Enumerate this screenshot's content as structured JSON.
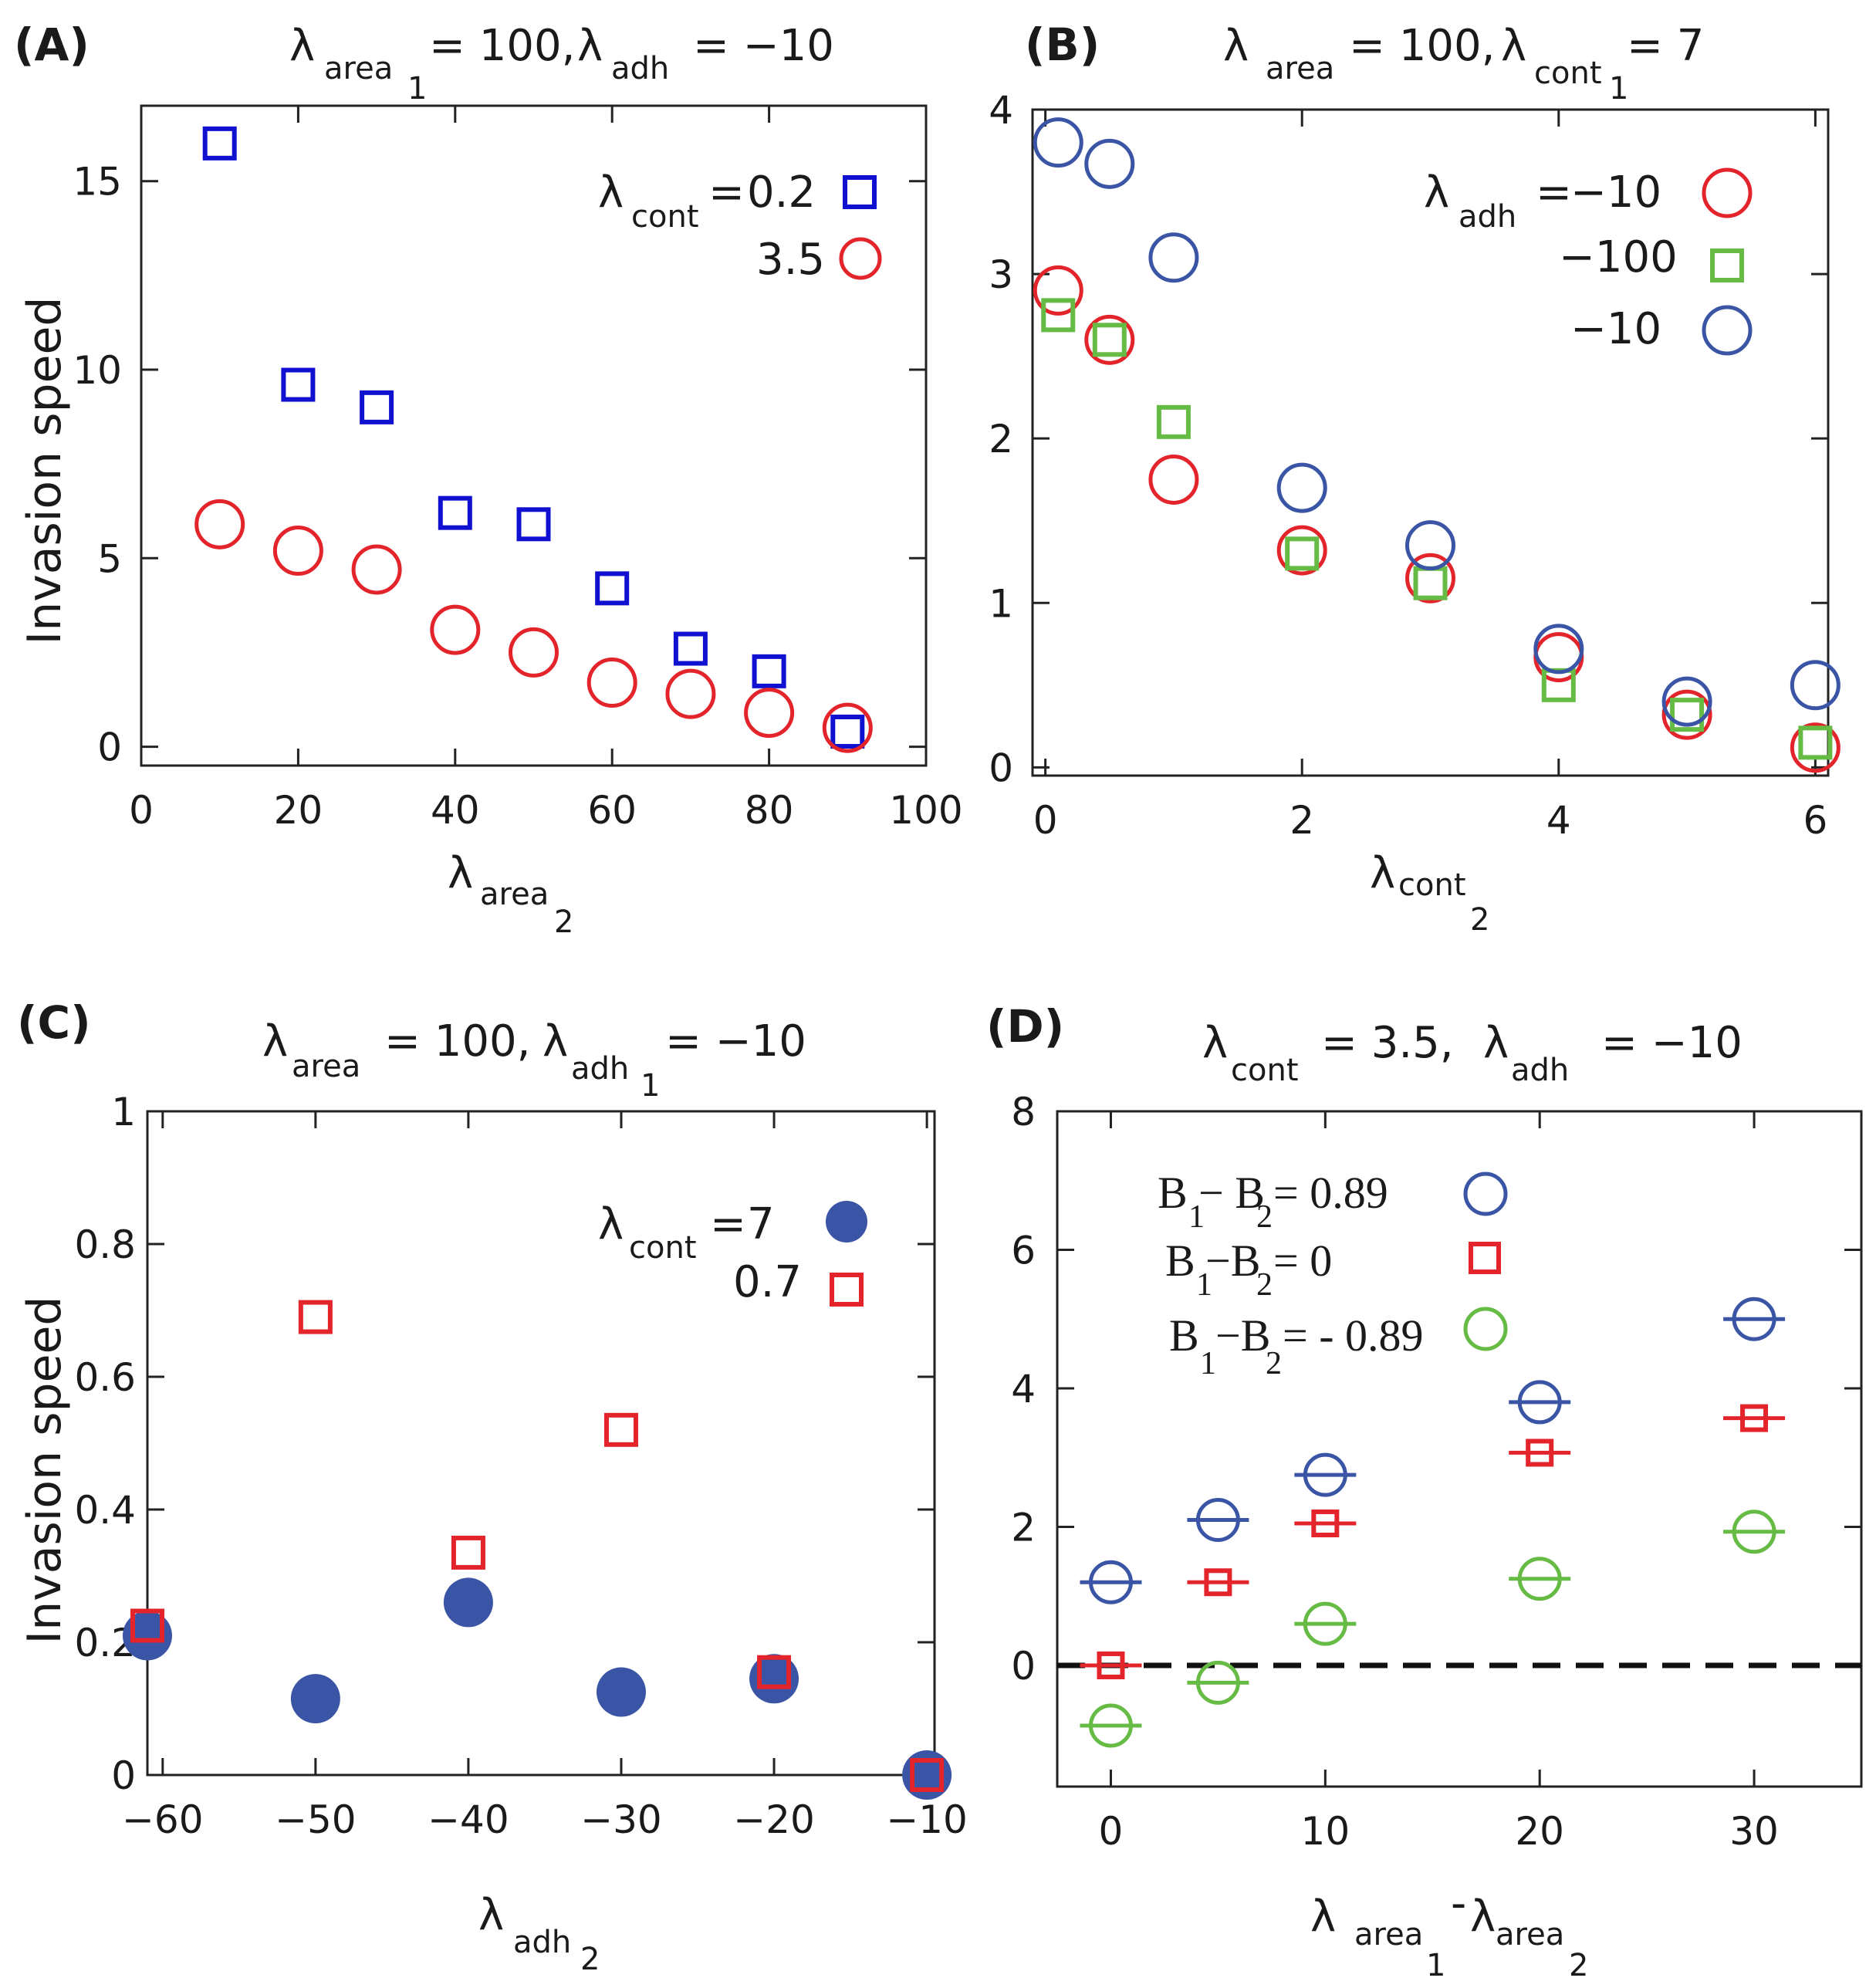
{
  "colors": {
    "blue": "#1010d0",
    "navy": "#3a55a5",
    "red": "#e3242b",
    "green": "#66bb44",
    "black": "#111111"
  },
  "chart_data": [
    {
      "panel": "(A)",
      "type": "scatter",
      "title": {
        "l1": "λ",
        "s1": "area",
        "s1b": "1",
        "m": "= 100,",
        "l2": "λ",
        "s2": "adh",
        "v": "= −10"
      },
      "xlabel": {
        "sym": "λ",
        "sub": "area",
        "subsub": "2"
      },
      "ylabel": "Invasion speed",
      "xlim": [
        0,
        100
      ],
      "ylim": [
        -0.5,
        17
      ],
      "xticks": [
        0,
        20,
        40,
        60,
        80,
        100
      ],
      "xtick_labels": [
        "0",
        "20",
        "40",
        "60",
        "80",
        "100"
      ],
      "yticks": [
        0,
        5,
        10,
        15
      ],
      "ytick_labels": [
        "0",
        "5",
        "10",
        "15"
      ],
      "legend": {
        "prefix_sym": "λ",
        "prefix_sub": "cont",
        "eq": "="
      },
      "series": [
        {
          "name": "0.2",
          "label": "0.2",
          "marker": "square",
          "color": "#1010d0",
          "x": [
            10,
            20,
            30,
            40,
            50,
            60,
            70,
            80,
            90
          ],
          "y": [
            16.0,
            9.6,
            9.0,
            6.2,
            5.9,
            4.2,
            2.6,
            2.0,
            0.4
          ]
        },
        {
          "name": "3.5",
          "label": "3.5",
          "marker": "circle",
          "color": "#e3242b",
          "x": [
            10,
            20,
            30,
            40,
            50,
            60,
            70,
            80,
            90
          ],
          "y": [
            5.9,
            5.2,
            4.7,
            3.1,
            2.5,
            1.7,
            1.4,
            0.9,
            0.5
          ]
        }
      ]
    },
    {
      "panel": "(B)",
      "type": "scatter",
      "title": {
        "l1": "λ",
        "s1": "area",
        "m": "= 100,",
        "l2": "λ",
        "s2": "cont",
        "s2b": "1",
        "v": "= 7"
      },
      "xlabel": {
        "sym": "λ",
        "sub": "cont",
        "subsub": "2"
      },
      "ylabel": "",
      "xlim": [
        -0.1,
        6.1
      ],
      "ylim": [
        -0.05,
        4.0
      ],
      "xticks": [
        0,
        2,
        4,
        6
      ],
      "xtick_labels": [
        "0",
        "2",
        "4",
        "6"
      ],
      "yticks": [
        0,
        1,
        2,
        3,
        4
      ],
      "ytick_labels": [
        "0",
        "1",
        "2",
        "3",
        "4"
      ],
      "legend": {
        "prefix_sym": "λ",
        "prefix_sub": "adh",
        "eq": "="
      },
      "series": [
        {
          "name": "−10",
          "label": "−10",
          "marker": "circle",
          "color": "#e3242b",
          "x": [
            0.1,
            0.5,
            1,
            2,
            3,
            4,
            5,
            6
          ],
          "y": [
            2.9,
            2.6,
            1.75,
            1.32,
            1.15,
            0.67,
            0.32,
            0.12
          ]
        },
        {
          "name": "−100",
          "label": "−100",
          "marker": "square",
          "color": "#66bb44",
          "x": [
            0.1,
            0.5,
            1,
            2,
            3,
            4,
            5,
            6
          ],
          "y": [
            2.75,
            2.6,
            2.1,
            1.3,
            1.12,
            0.5,
            0.32,
            0.15
          ]
        },
        {
          "name": "−10",
          "label": "−10",
          "marker": "circle",
          "color": "#3a55a5",
          "x": [
            0.1,
            0.5,
            1,
            2,
            3,
            4,
            5,
            6
          ],
          "y": [
            3.8,
            3.67,
            3.1,
            1.7,
            1.35,
            0.72,
            0.4,
            0.5
          ]
        }
      ]
    },
    {
      "panel": "(C)",
      "type": "scatter",
      "title": {
        "l1": "λ",
        "s1": "area",
        "m": "= 100,",
        "l2": "λ",
        "s2": "adh",
        "s2b": "1",
        "v": "= −10"
      },
      "xlabel": {
        "sym": "λ",
        "sub": "adh",
        "subsub": "2"
      },
      "ylabel": "Invasion speed",
      "xlim": [
        -61,
        -9.5
      ],
      "ylim": [
        0,
        1
      ],
      "xticks": [
        -60,
        -50,
        -40,
        -30,
        -20,
        -10
      ],
      "xtick_labels": [
        "−60",
        "−50",
        "−40",
        "−30",
        "−20",
        "−10"
      ],
      "yticks": [
        0,
        0.2,
        0.4,
        0.6,
        0.8,
        1
      ],
      "ytick_labels": [
        "0",
        "0.2",
        "0.4",
        "0.6",
        "0.8",
        "1"
      ],
      "legend": {
        "prefix_sym": "λ",
        "prefix_sub": "cont",
        "eq": "="
      },
      "series": [
        {
          "name": "7",
          "label": "7",
          "marker": "filled-circle",
          "color": "#3a55a5",
          "x": [
            -61,
            -50,
            -40,
            -30,
            -20,
            -10
          ],
          "y": [
            0.21,
            0.115,
            0.26,
            0.125,
            0.145,
            0.0
          ]
        },
        {
          "name": "0.7",
          "label": "0.7",
          "marker": "square",
          "color": "#e3242b",
          "x": [
            -61,
            -50,
            -40,
            -30,
            -20,
            -10
          ],
          "y": [
            0.225,
            0.69,
            0.335,
            0.52,
            0.155,
            0.0
          ]
        }
      ]
    },
    {
      "panel": "(D)",
      "type": "scatter",
      "title": {
        "l1": "λ",
        "s1": "cont",
        "m": "= 3.5,",
        "l2": "λ",
        "s2": "adh",
        "v": "= −10"
      },
      "xlabel": {
        "sym": "λ",
        "sub": "area",
        "subsub": "1",
        "minus": "-",
        "sym2": "λ",
        "sub2": "area",
        "subsub2": "2"
      },
      "ylabel": "",
      "xlim": [
        -2.5,
        35
      ],
      "ylim": [
        -1.75,
        8
      ],
      "xticks": [
        0,
        10,
        20,
        30
      ],
      "xtick_labels": [
        "0",
        "10",
        "20",
        "30"
      ],
      "yticks": [
        0,
        2,
        4,
        6,
        8
      ],
      "ytick_labels": [
        "0",
        "2",
        "4",
        "6",
        "8"
      ],
      "reference_line": {
        "y": 0,
        "style": "dashed"
      },
      "legend": {
        "prefix": "B"
      },
      "series": [
        {
          "name": "B1−B2=0.89",
          "lbl_a": "B",
          "lbl_a_sub": "1",
          "lbl_mid": "− B",
          "lbl_b_sub": "2",
          "lbl_val": "= 0.89",
          "marker": "circle-bar",
          "color": "#3a55a5",
          "x": [
            0,
            5,
            10,
            20,
            30
          ],
          "y": [
            1.2,
            2.1,
            2.75,
            3.8,
            5.0
          ]
        },
        {
          "name": "B1−B2=0",
          "lbl_a": "B",
          "lbl_a_sub": "1",
          "lbl_mid": "−B",
          "lbl_b_sub": "2",
          "lbl_val": "= 0",
          "marker": "square-bar",
          "color": "#e3242b",
          "x": [
            0,
            5,
            10,
            20,
            30
          ],
          "y": [
            0.0,
            1.2,
            2.05,
            3.07,
            3.57
          ]
        },
        {
          "name": "B1−B2=-0.89",
          "lbl_a": "B",
          "lbl_a_sub": "1",
          "lbl_mid": "−B",
          "lbl_b_sub": "2",
          "lbl_val": "= - 0.89",
          "marker": "circle-bar",
          "color": "#66bb44",
          "x": [
            0,
            5,
            10,
            20,
            30
          ],
          "y": [
            -0.87,
            -0.25,
            0.6,
            1.25,
            1.93
          ]
        }
      ]
    }
  ]
}
